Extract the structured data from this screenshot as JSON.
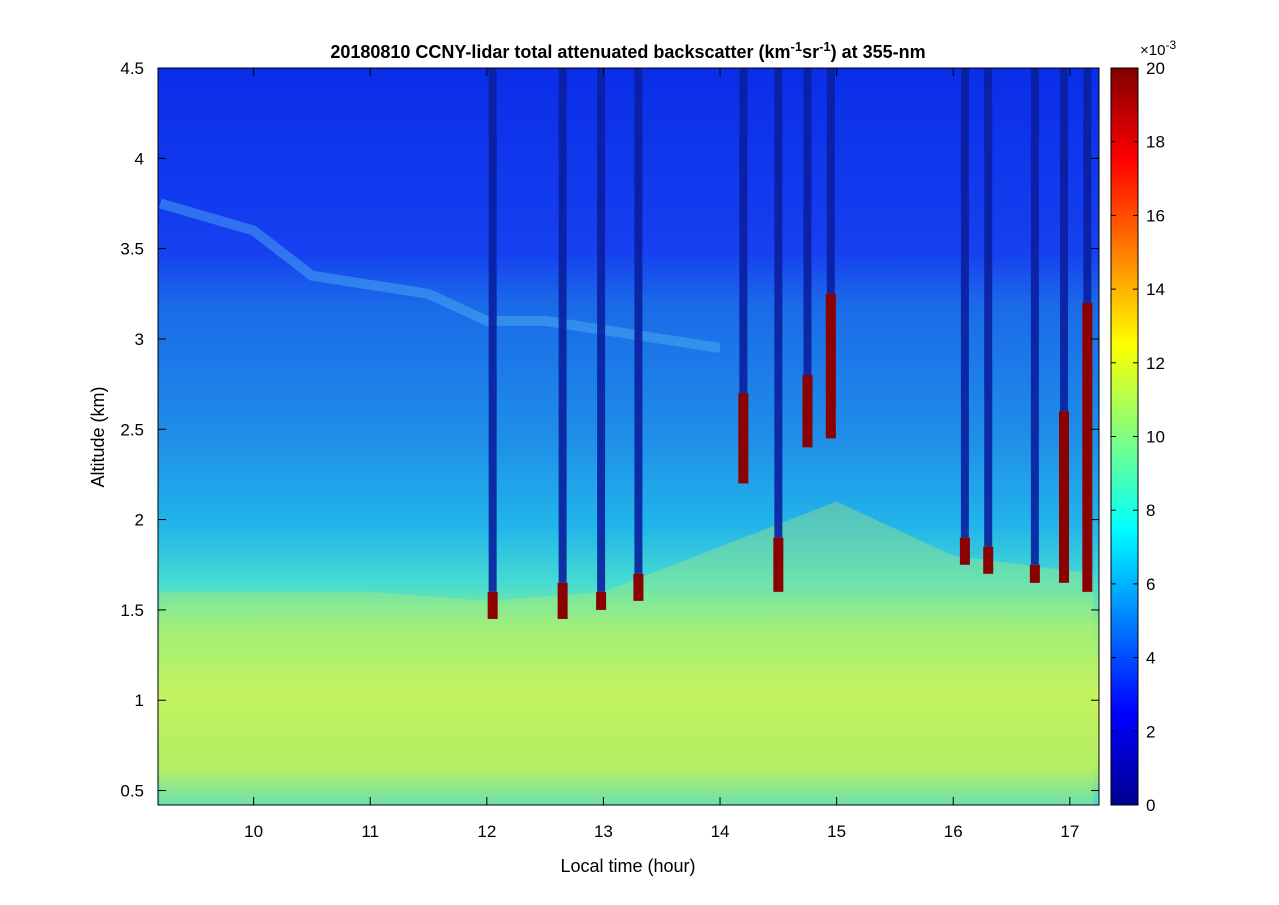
{
  "chart_data": {
    "type": "heatmap",
    "title_main": "20180810 CCNY-lidar total attenuated backscatter (km",
    "title_exp1": "-1",
    "title_mid": "sr",
    "title_exp2": "-1",
    "title_end": ") at 355-nm",
    "xlabel": "Local time (hour)",
    "ylabel": "Altitude (km)",
    "xlim": [
      9.18,
      17.25
    ],
    "ylim": [
      0.42,
      4.5
    ],
    "xticks": [
      "10",
      "11",
      "12",
      "13",
      "14",
      "15",
      "16",
      "17"
    ],
    "yticks": [
      "0.5",
      "1",
      "1.5",
      "2",
      "2.5",
      "3",
      "3.5",
      "4",
      "4.5"
    ],
    "colorbar": {
      "range": [
        0,
        20
      ],
      "ticks": [
        "0",
        "2",
        "4",
        "6",
        "8",
        "10",
        "12",
        "14",
        "16",
        "18",
        "20"
      ],
      "multiplier": "×10",
      "multiplier_exp": "-3",
      "colormap": "jet"
    },
    "layers": {
      "aerosol_boundary_layer_top_km": [
        {
          "time": 9.2,
          "top": 1.6
        },
        {
          "time": 10.0,
          "top": 1.6
        },
        {
          "time": 11.0,
          "top": 1.6
        },
        {
          "time": 12.0,
          "top": 1.55
        },
        {
          "time": 13.0,
          "top": 1.6
        },
        {
          "time": 14.0,
          "top": 1.85
        },
        {
          "time": 15.0,
          "top": 2.1
        },
        {
          "time": 16.0,
          "top": 1.8
        },
        {
          "time": 17.2,
          "top": 1.7
        }
      ],
      "elevated_aerosol_layer_km": [
        {
          "time": 9.2,
          "alt": 3.75
        },
        {
          "time": 10.0,
          "alt": 3.6
        },
        {
          "time": 10.5,
          "alt": 3.35
        },
        {
          "time": 11.0,
          "alt": 3.3
        },
        {
          "time": 11.5,
          "alt": 3.25
        },
        {
          "time": 12.0,
          "alt": 3.1
        },
        {
          "time": 12.5,
          "alt": 3.1
        },
        {
          "time": 13.0,
          "alt": 3.05
        },
        {
          "time": 13.5,
          "alt": 3.0
        },
        {
          "time": 14.0,
          "alt": 2.95
        }
      ]
    },
    "cloud_events": [
      {
        "time": 12.05,
        "base": 1.45,
        "top": 1.6
      },
      {
        "time": 12.65,
        "base": 1.45,
        "top": 1.65
      },
      {
        "time": 12.98,
        "base": 1.5,
        "top": 1.6
      },
      {
        "time": 13.3,
        "base": 1.55,
        "top": 1.7
      },
      {
        "time": 14.2,
        "base": 2.2,
        "top": 2.7
      },
      {
        "time": 14.5,
        "base": 1.6,
        "top": 1.9
      },
      {
        "time": 14.75,
        "base": 2.4,
        "top": 2.8
      },
      {
        "time": 14.95,
        "base": 2.45,
        "top": 3.25
      },
      {
        "time": 16.1,
        "base": 1.75,
        "top": 1.9
      },
      {
        "time": 16.3,
        "base": 1.7,
        "top": 1.85
      },
      {
        "time": 16.7,
        "base": 1.65,
        "top": 1.75
      },
      {
        "time": 16.95,
        "base": 1.65,
        "top": 2.6
      },
      {
        "time": 17.15,
        "base": 1.6,
        "top": 3.2
      }
    ]
  }
}
